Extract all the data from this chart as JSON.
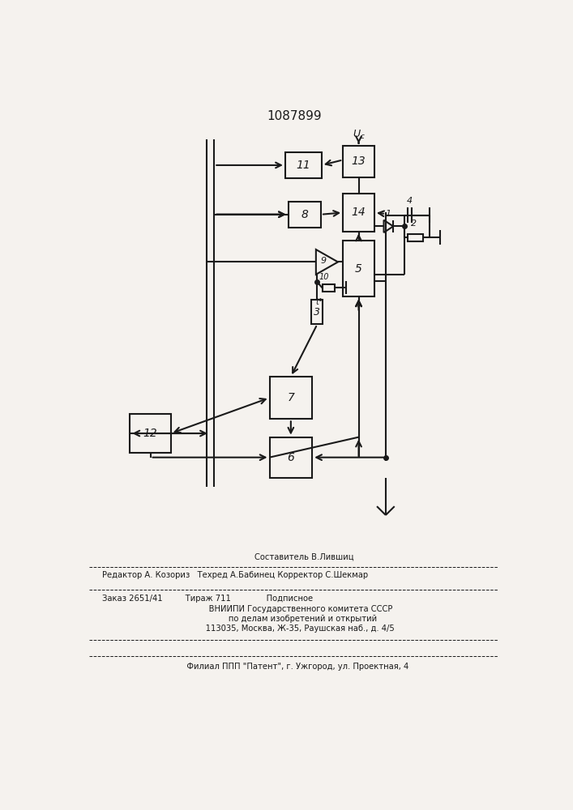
{
  "title": "1087899",
  "bg_color": "#f5f2ee",
  "line_color": "#1a1a1a",
  "fig_width": 7.07,
  "fig_height": 10.0,
  "footer": {
    "l1": "        Составитель В.Лившиц",
    "l2": "Редактор А. Козориз   Техред А.Бабинец Корректор С.Шекмар",
    "l3": "Заказ 2651/41         Тираж 711              Подписное",
    "l4": "     ВНИИПИ Государственного комитета СССР",
    "l5": "       по делам изобретений и открытий",
    "l6": "     113035, Москва, Ж-35, Раушская наб., д. 4/5",
    "l7": "   Филиал ППП \"Патент\", г. Ужгород, ул. Проектная, 4"
  }
}
